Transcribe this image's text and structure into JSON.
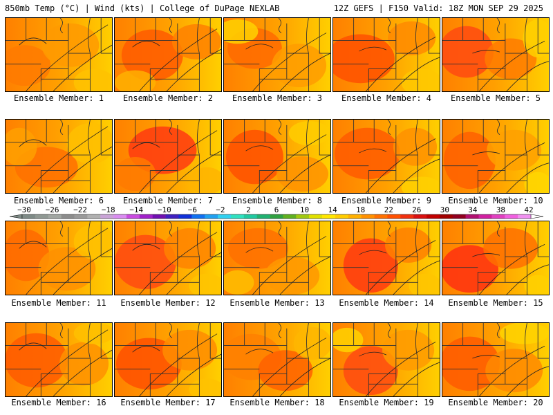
{
  "header": {
    "left": "850mb Temp (°C) | Wind (kts) | College of DuPage NEXLAB",
    "right": "12Z GEFS | F150 Valid: 18Z MON SEP 29 2025"
  },
  "member_prefix": "Ensemble Member: ",
  "members": [
    "1",
    "2",
    "3",
    "4",
    "5",
    "6",
    "7",
    "8",
    "9",
    "10",
    "11",
    "12",
    "13",
    "14",
    "15",
    "16",
    "17",
    "18",
    "19",
    "20"
  ],
  "colorbar": {
    "labels": [
      "−30",
      "−26",
      "−22",
      "−18",
      "−14",
      "−10",
      "−6",
      "−2",
      "2",
      "6",
      "10",
      "14",
      "18",
      "22",
      "26",
      "30",
      "34",
      "38",
      "42"
    ],
    "values": [
      -30,
      -26,
      -22,
      -18,
      -14,
      -10,
      -6,
      -2,
      2,
      6,
      10,
      14,
      18,
      22,
      26,
      30,
      34,
      38,
      42
    ],
    "colors": [
      "#7e8a86",
      "#8f9893",
      "#a1a6a2",
      "#8c8c8c",
      "#9a9a9a",
      "#b0b0b0",
      "#c9a3d6",
      "#d98cf0",
      "#c94ae0",
      "#a020c8",
      "#7010b0",
      "#4020c0",
      "#1030d8",
      "#1070f0",
      "#20a0f0",
      "#30d0f0",
      "#30e0c0",
      "#20c8a0",
      "#20b070",
      "#30a040",
      "#60b020",
      "#a0c810",
      "#e0e000",
      "#ffe600",
      "#ffcc00",
      "#ffb000",
      "#ff9000",
      "#ff7000",
      "#ff5000",
      "#f03010",
      "#d81010",
      "#c00000",
      "#a00000",
      "#900020",
      "#b01070",
      "#d020a0",
      "#e040c0",
      "#f060e0",
      "#f090f0"
    ]
  }
}
